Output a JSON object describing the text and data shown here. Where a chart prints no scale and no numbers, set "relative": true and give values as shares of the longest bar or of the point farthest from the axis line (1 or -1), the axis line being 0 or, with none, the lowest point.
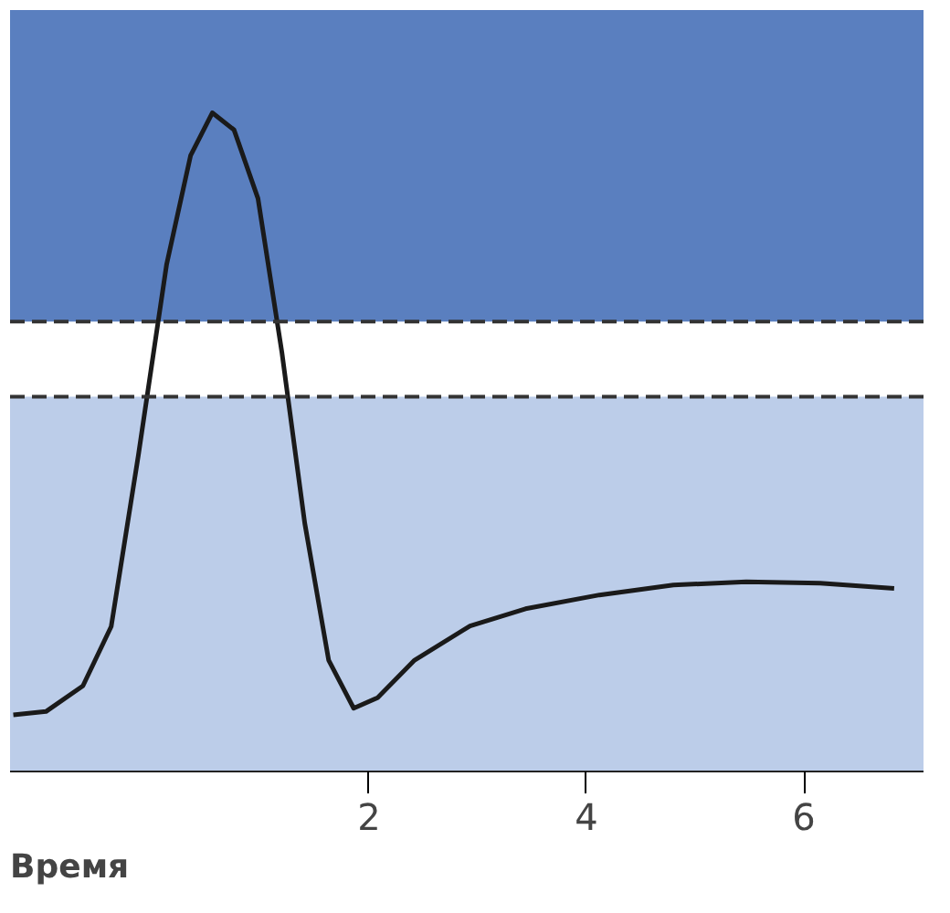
{
  "chart_data": {
    "type": "line",
    "relative": true,
    "xlabel": "Время",
    "xlim": [
      -1.3,
      7.1
    ],
    "xticks": [
      2,
      4,
      6
    ],
    "grid": false,
    "marker": "none",
    "line_style": "solid",
    "x": [
      -1.27,
      -0.97,
      -0.63,
      -0.37,
      -0.12,
      0.14,
      0.36,
      0.56,
      0.76,
      0.98,
      1.2,
      1.41,
      1.63,
      1.86,
      2.08,
      2.42,
      2.93,
      3.44,
      4.12,
      4.8,
      5.47,
      6.15,
      6.83
    ],
    "series": [
      {
        "color": "#1a1a1a",
        "values": [
          0.086,
          0.091,
          0.13,
          0.22,
          0.48,
          0.77,
          0.935,
          1.0,
          0.974,
          0.87,
          0.636,
          0.377,
          0.169,
          0.096,
          0.112,
          0.169,
          0.221,
          0.247,
          0.268,
          0.283,
          0.288,
          0.286,
          0.278
        ]
      }
    ],
    "bands": [
      {
        "axis": "y",
        "from": 0,
        "to": 0.569,
        "color": "#bccde9"
      },
      {
        "axis": "y",
        "from": 0.683,
        "to": 1.156,
        "color": "#5a7fbf"
      }
    ],
    "ref_lines": [
      {
        "axis": "y",
        "value": 0.569,
        "color": "#333333",
        "line_style": "dashed"
      },
      {
        "axis": "y",
        "value": 0.683,
        "color": "#333333",
        "line_style": "dashed"
      }
    ]
  }
}
